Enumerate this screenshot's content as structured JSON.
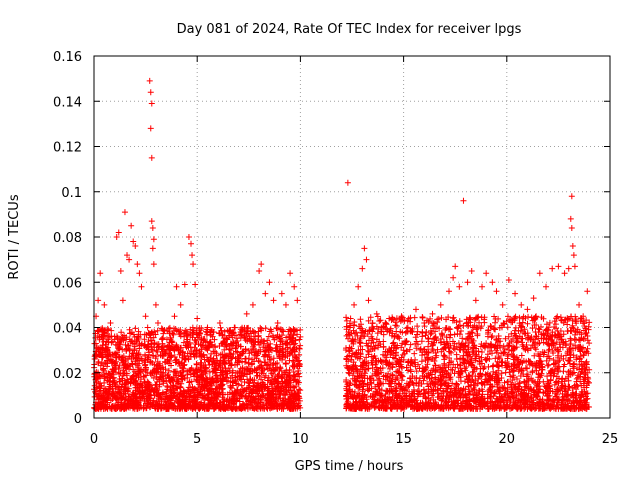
{
  "chart_data": {
    "type": "scatter",
    "title": "Day 081 of 2024, Rate Of TEC Index for receiver lpgs",
    "xlabel": "GPS time / hours",
    "ylabel": "ROTI / TECUs",
    "xlim": [
      0,
      25
    ],
    "ylim": [
      0,
      0.16
    ],
    "x_ticks": [
      0,
      5,
      10,
      15,
      20,
      25
    ],
    "x_tick_labels": [
      "0",
      "5",
      "10",
      "15",
      "20",
      "25"
    ],
    "y_ticks": [
      0,
      0.02,
      0.04,
      0.06,
      0.08,
      0.1,
      0.12,
      0.14,
      0.16
    ],
    "y_tick_labels": [
      "0",
      "0.02",
      "0.04",
      "0.06",
      "0.08",
      "0.1",
      "0.12",
      "0.14",
      "0.16"
    ],
    "grid": true,
    "marker": "+",
    "marker_color": "#ff0000",
    "series": [
      {
        "name": "ROTI",
        "points": [
          [
            0.1,
            0.045
          ],
          [
            0.2,
            0.052
          ],
          [
            0.3,
            0.064
          ],
          [
            0.4,
            0.038
          ],
          [
            0.5,
            0.05
          ],
          [
            0.6,
            0.03
          ],
          [
            0.8,
            0.042
          ],
          [
            0.9,
            0.028
          ],
          [
            1.0,
            0.036
          ],
          [
            1.1,
            0.08
          ],
          [
            1.2,
            0.082
          ],
          [
            1.3,
            0.065
          ],
          [
            1.4,
            0.052
          ],
          [
            1.5,
            0.091
          ],
          [
            1.6,
            0.072
          ],
          [
            1.7,
            0.07
          ],
          [
            1.8,
            0.085
          ],
          [
            1.9,
            0.078
          ],
          [
            2.0,
            0.076
          ],
          [
            2.1,
            0.068
          ],
          [
            2.2,
            0.064
          ],
          [
            2.3,
            0.058
          ],
          [
            2.5,
            0.045
          ],
          [
            2.6,
            0.04
          ],
          [
            2.7,
            0.149
          ],
          [
            2.75,
            0.144
          ],
          [
            2.8,
            0.139
          ],
          [
            2.75,
            0.128
          ],
          [
            2.8,
            0.115
          ],
          [
            2.8,
            0.087
          ],
          [
            2.85,
            0.084
          ],
          [
            2.9,
            0.079
          ],
          [
            2.85,
            0.075
          ],
          [
            2.9,
            0.068
          ],
          [
            3.0,
            0.05
          ],
          [
            3.1,
            0.042
          ],
          [
            3.3,
            0.035
          ],
          [
            3.5,
            0.03
          ],
          [
            3.7,
            0.03
          ],
          [
            3.9,
            0.045
          ],
          [
            4.0,
            0.058
          ],
          [
            4.2,
            0.05
          ],
          [
            4.4,
            0.059
          ],
          [
            4.6,
            0.08
          ],
          [
            4.7,
            0.077
          ],
          [
            4.75,
            0.072
          ],
          [
            4.8,
            0.068
          ],
          [
            4.9,
            0.059
          ],
          [
            5.0,
            0.044
          ],
          [
            5.2,
            0.035
          ],
          [
            5.5,
            0.04
          ],
          [
            5.8,
            0.038
          ],
          [
            6.1,
            0.042
          ],
          [
            6.4,
            0.035
          ],
          [
            6.8,
            0.04
          ],
          [
            7.1,
            0.038
          ],
          [
            7.4,
            0.046
          ],
          [
            7.7,
            0.05
          ],
          [
            8.0,
            0.065
          ],
          [
            8.1,
            0.068
          ],
          [
            8.3,
            0.055
          ],
          [
            8.5,
            0.06
          ],
          [
            8.7,
            0.052
          ],
          [
            8.9,
            0.042
          ],
          [
            9.1,
            0.055
          ],
          [
            9.3,
            0.05
          ],
          [
            9.5,
            0.064
          ],
          [
            9.7,
            0.058
          ],
          [
            9.85,
            0.052
          ],
          [
            12.3,
            0.104
          ],
          [
            12.4,
            0.04
          ],
          [
            12.6,
            0.05
          ],
          [
            12.8,
            0.058
          ],
          [
            13.0,
            0.066
          ],
          [
            13.1,
            0.075
          ],
          [
            13.2,
            0.07
          ],
          [
            13.3,
            0.052
          ],
          [
            13.5,
            0.042
          ],
          [
            13.7,
            0.046
          ],
          [
            14.0,
            0.04
          ],
          [
            14.3,
            0.044
          ],
          [
            14.6,
            0.041
          ],
          [
            14.9,
            0.045
          ],
          [
            15.2,
            0.043
          ],
          [
            15.6,
            0.048
          ],
          [
            16.0,
            0.042
          ],
          [
            16.4,
            0.046
          ],
          [
            16.8,
            0.05
          ],
          [
            17.2,
            0.056
          ],
          [
            17.4,
            0.062
          ],
          [
            17.5,
            0.067
          ],
          [
            17.7,
            0.058
          ],
          [
            17.9,
            0.096
          ],
          [
            18.1,
            0.06
          ],
          [
            18.3,
            0.065
          ],
          [
            18.5,
            0.052
          ],
          [
            18.8,
            0.058
          ],
          [
            19.0,
            0.064
          ],
          [
            19.3,
            0.06
          ],
          [
            19.5,
            0.056
          ],
          [
            19.8,
            0.05
          ],
          [
            20.1,
            0.061
          ],
          [
            20.4,
            0.055
          ],
          [
            20.7,
            0.05
          ],
          [
            21.0,
            0.048
          ],
          [
            21.3,
            0.053
          ],
          [
            21.6,
            0.064
          ],
          [
            21.9,
            0.058
          ],
          [
            22.2,
            0.066
          ],
          [
            22.5,
            0.067
          ],
          [
            22.8,
            0.064
          ],
          [
            23.0,
            0.066
          ],
          [
            23.1,
            0.088
          ],
          [
            23.15,
            0.084
          ],
          [
            23.2,
            0.076
          ],
          [
            23.15,
            0.098
          ],
          [
            23.25,
            0.072
          ],
          [
            23.3,
            0.067
          ],
          [
            23.5,
            0.05
          ],
          [
            23.7,
            0.045
          ],
          [
            23.9,
            0.056
          ]
        ],
        "dense_bands": [
          {
            "x_range": [
              0.0,
              10.0
            ],
            "y_range": [
              0.004,
              0.04
            ]
          },
          {
            "x_range": [
              12.2,
              24.0
            ],
            "y_range": [
              0.004,
              0.045
            ]
          }
        ]
      }
    ]
  }
}
